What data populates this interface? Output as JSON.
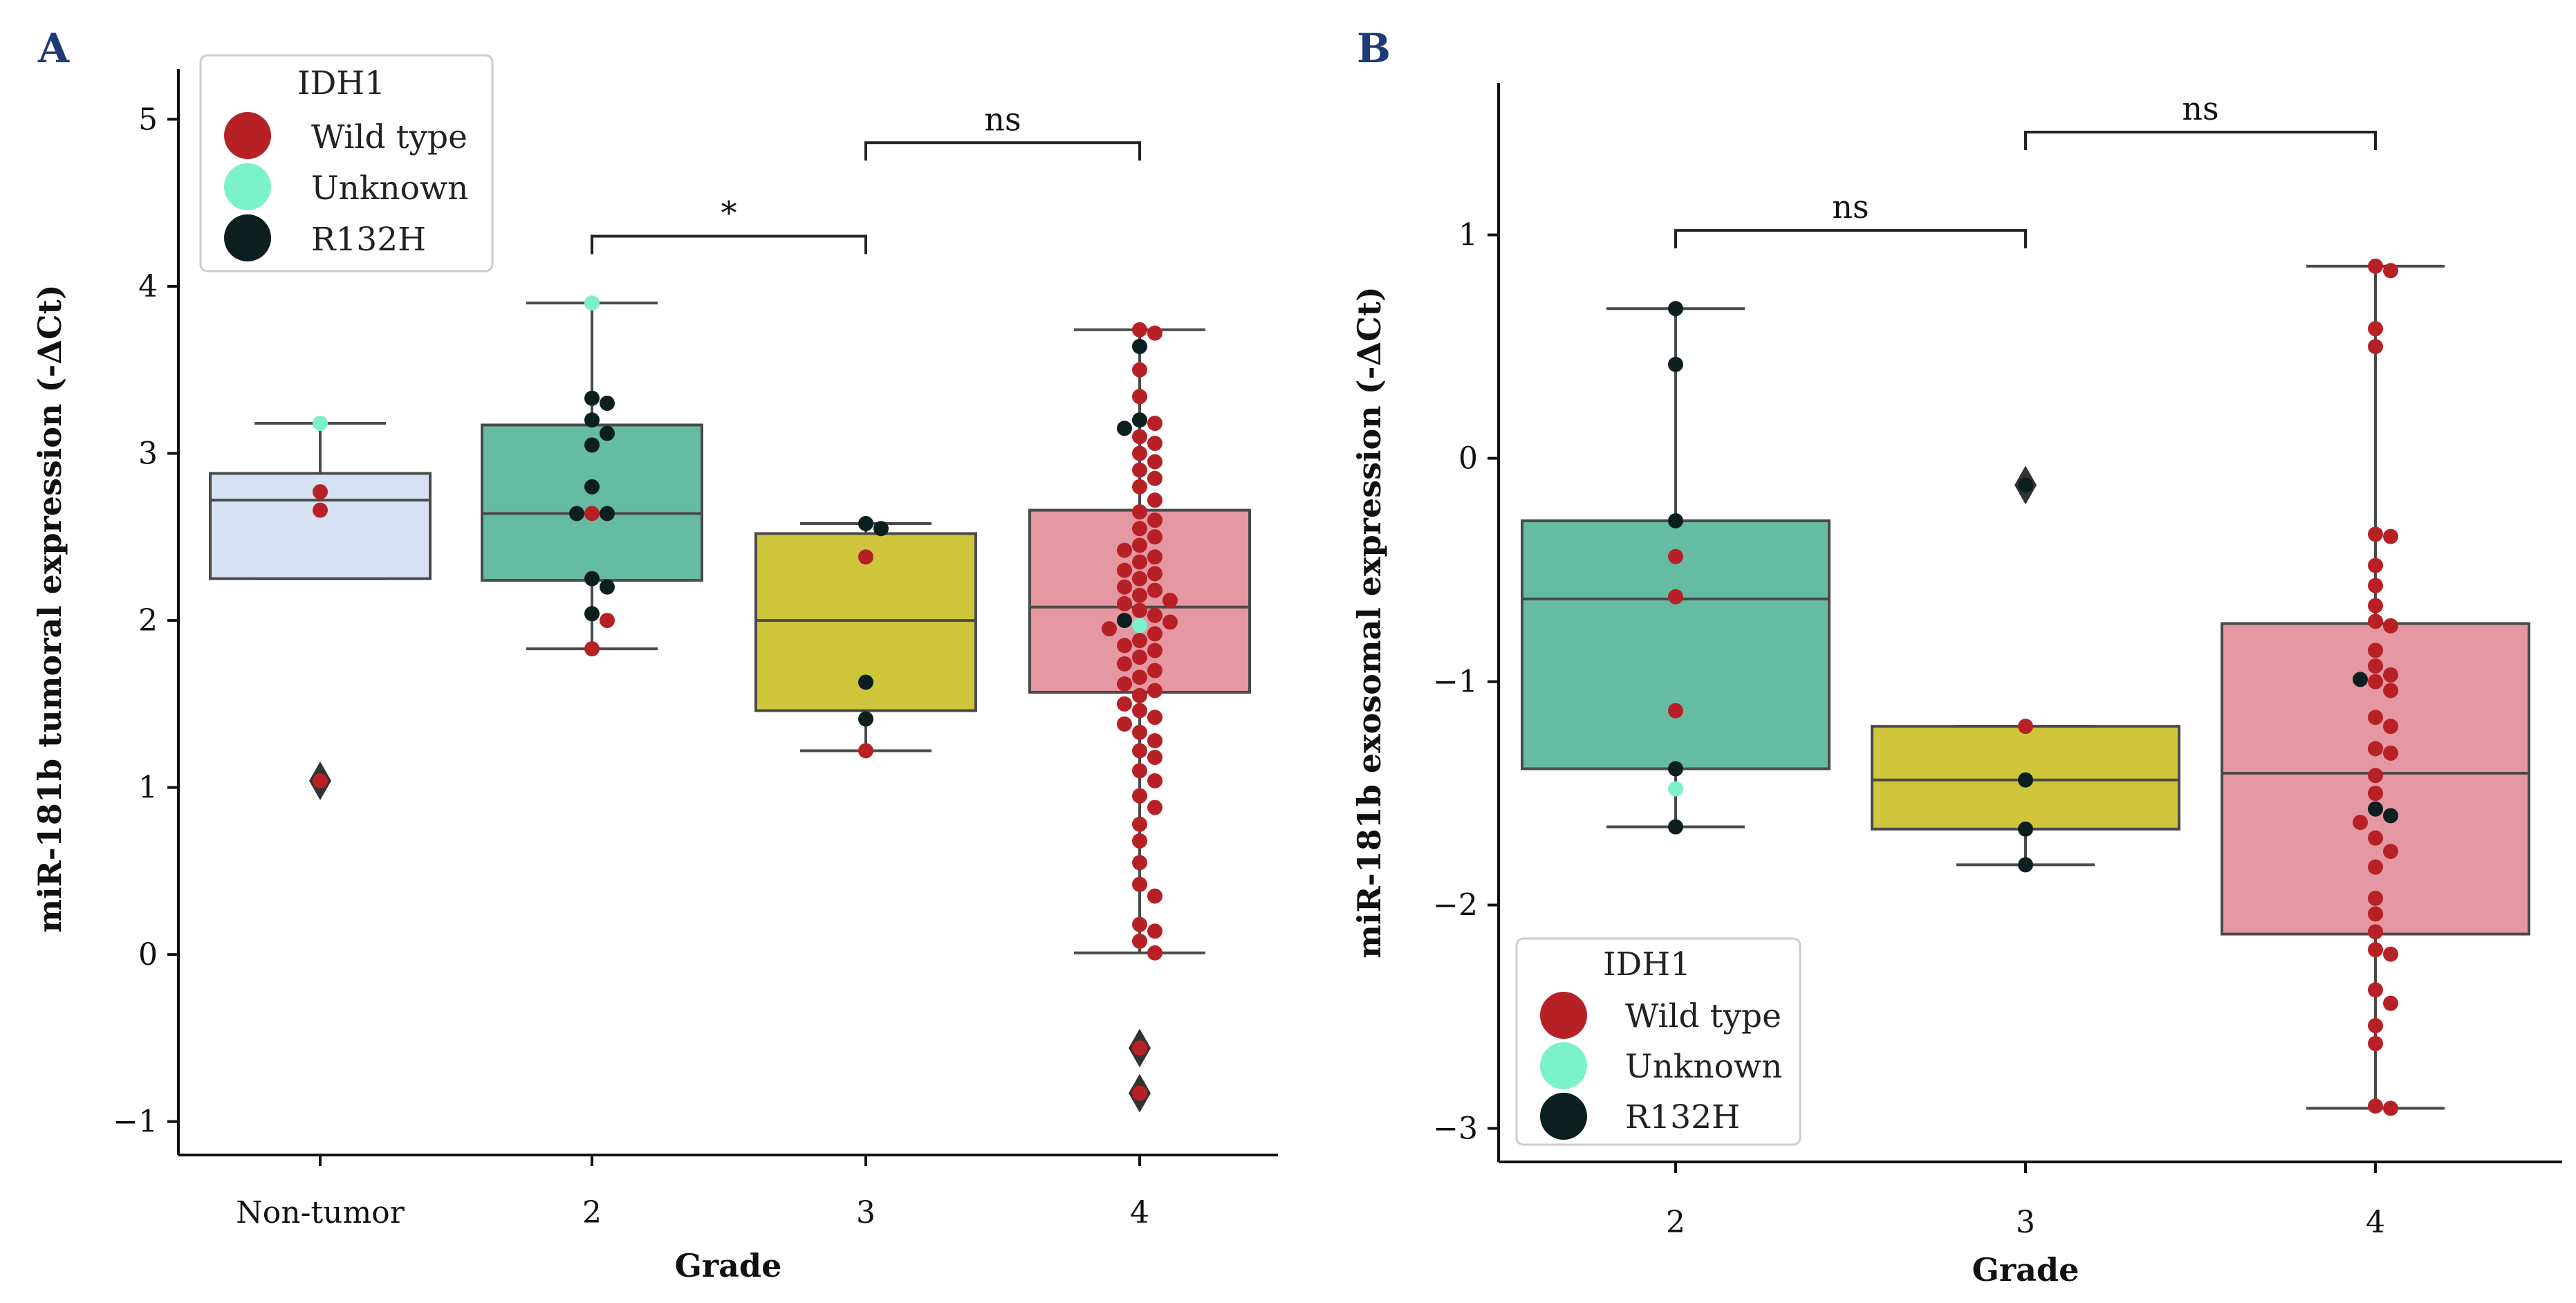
{
  "legend": {
    "title": "IDH1",
    "entries": [
      {
        "label": "Wild type",
        "color": "#b72126"
      },
      {
        "label": "Unknown",
        "color": "#7bf2c9"
      },
      {
        "label": "R132H",
        "color": "#0c1f1f"
      }
    ]
  },
  "chart_data": [
    {
      "panel": "A",
      "type": "box",
      "title": "",
      "xlabel": "Grade",
      "ylabel": "miR-181b tumoral expression (-ΔCt)",
      "ylim": [
        -1.2,
        5.3
      ],
      "yticks": [
        -1,
        0,
        1,
        2,
        3,
        4,
        5
      ],
      "ytick_labels": [
        "−1",
        "0",
        "1",
        "2",
        "3",
        "4",
        "5"
      ],
      "categories": [
        "Non-tumor",
        "2",
        "3",
        "4"
      ],
      "legend_position": "top-left",
      "boxes": [
        {
          "category": "Non-tumor",
          "q1": 2.25,
          "median": 2.72,
          "q3": 2.88,
          "whisker_low": 2.25,
          "whisker_high": 3.18,
          "outliers": [
            1.04
          ],
          "color": "#d6e2f4"
        },
        {
          "category": "2",
          "q1": 2.24,
          "median": 2.64,
          "q3": 3.17,
          "whisker_low": 1.83,
          "whisker_high": 3.9,
          "outliers": [],
          "color": "#66bba3"
        },
        {
          "category": "3",
          "q1": 1.46,
          "median": 2.0,
          "q3": 2.52,
          "whisker_low": 1.22,
          "whisker_high": 2.58,
          "outliers": [],
          "color": "#d0c63b"
        },
        {
          "category": "4",
          "q1": 1.57,
          "median": 2.08,
          "q3": 2.66,
          "whisker_low": 0.01,
          "whisker_high": 3.74,
          "outliers": [
            -0.56,
            -0.83
          ],
          "color": "#e597a2"
        }
      ],
      "points": [
        {
          "category": "Non-tumor",
          "values": [
            3.18
          ],
          "group": "Unknown"
        },
        {
          "category": "Non-tumor",
          "values": [
            2.77,
            2.66,
            1.04
          ],
          "group": "Wild type"
        },
        {
          "category": "2",
          "values": [
            3.9
          ],
          "group": "Unknown"
        },
        {
          "category": "2",
          "values": [
            2.64,
            2.0,
            1.83
          ],
          "group": "Wild type"
        },
        {
          "category": "2",
          "values": [
            3.33,
            3.3,
            3.2,
            3.12,
            3.05,
            2.8,
            2.64,
            2.64,
            2.25,
            2.2,
            2.04
          ],
          "group": "R132H"
        },
        {
          "category": "3",
          "values": [
            2.38,
            1.22
          ],
          "group": "Wild type"
        },
        {
          "category": "3",
          "values": [
            2.58,
            2.55,
            1.63,
            1.41
          ],
          "group": "R132H"
        },
        {
          "category": "4",
          "values": [
            1.97
          ],
          "group": "Unknown"
        },
        {
          "category": "4",
          "values": [
            3.64,
            3.2,
            3.15,
            2.0
          ],
          "group": "R132H"
        },
        {
          "category": "4",
          "values": [
            3.74,
            3.72,
            3.5,
            3.34,
            3.18,
            3.1,
            3.06,
            3.0,
            2.95,
            2.9,
            2.85,
            2.8,
            2.72,
            2.65,
            2.6,
            2.55,
            2.5,
            2.45,
            2.42,
            2.38,
            2.35,
            2.3,
            2.28,
            2.25,
            2.2,
            2.18,
            2.15,
            2.12,
            2.1,
            2.06,
            2.03,
            1.99,
            1.95,
            1.92,
            1.88,
            1.85,
            1.82,
            1.78,
            1.74,
            1.7,
            1.66,
            1.62,
            1.58,
            1.55,
            1.5,
            1.46,
            1.42,
            1.38,
            1.33,
            1.28,
            1.22,
            1.18,
            1.1,
            1.04,
            0.95,
            0.88,
            0.78,
            0.68,
            0.55,
            0.42,
            0.35,
            0.18,
            0.14,
            0.08,
            0.01,
            -0.56,
            -0.83
          ],
          "group": "Wild type"
        }
      ],
      "significance": [
        {
          "from": "2",
          "to": "3",
          "y": 4.3,
          "label": "*"
        },
        {
          "from": "3",
          "to": "4",
          "y": 4.86,
          "label": "ns"
        }
      ]
    },
    {
      "panel": "B",
      "type": "box",
      "title": "",
      "xlabel": "Grade",
      "ylabel": "miR-181b exosomal expression (-ΔCt)",
      "ylim": [
        -3.15,
        1.68
      ],
      "yticks": [
        -3,
        -2,
        -1,
        0,
        1
      ],
      "ytick_labels": [
        "−3",
        "−2",
        "−1",
        "0",
        "1"
      ],
      "categories": [
        "2",
        "3",
        "4"
      ],
      "legend_position": "lower-left",
      "boxes": [
        {
          "category": "2",
          "q1": -1.39,
          "median": -0.63,
          "q3": -0.28,
          "whisker_low": -1.65,
          "whisker_high": 0.67,
          "outliers": [],
          "color": "#66bba3"
        },
        {
          "category": "3",
          "q1": -1.66,
          "median": -1.44,
          "q3": -1.2,
          "whisker_low": -1.82,
          "whisker_high": -1.2,
          "outliers": [
            -0.12
          ],
          "color": "#d0c63b"
        },
        {
          "category": "4",
          "q1": -2.13,
          "median": -1.41,
          "q3": -0.74,
          "whisker_low": -2.91,
          "whisker_high": 0.86,
          "outliers": [],
          "color": "#e597a2"
        }
      ],
      "points": [
        {
          "category": "2",
          "values": [
            -1.48
          ],
          "group": "Unknown"
        },
        {
          "category": "2",
          "values": [
            -0.44,
            -0.62,
            -1.13
          ],
          "group": "Wild type"
        },
        {
          "category": "2",
          "values": [
            0.67,
            0.42,
            -0.28,
            -1.39,
            -1.65
          ],
          "group": "R132H"
        },
        {
          "category": "3",
          "values": [
            -1.2
          ],
          "group": "Wild type"
        },
        {
          "category": "3",
          "values": [
            -0.12,
            -1.44,
            -1.66,
            -1.82
          ],
          "group": "R132H"
        },
        {
          "category": "4",
          "values": [
            -0.99,
            -1.57,
            -1.6
          ],
          "group": "R132H"
        },
        {
          "category": "4",
          "values": [
            0.86,
            0.84,
            0.58,
            0.5,
            -0.34,
            -0.35,
            -0.48,
            -0.57,
            -0.66,
            -0.73,
            -0.75,
            -0.86,
            -0.93,
            -0.97,
            -1.0,
            -1.04,
            -1.16,
            -1.2,
            -1.3,
            -1.32,
            -1.42,
            -1.5,
            -1.63,
            -1.7,
            -1.76,
            -1.83,
            -1.97,
            -2.04,
            -2.12,
            -2.2,
            -2.22,
            -2.38,
            -2.44,
            -2.54,
            -2.62,
            -2.9,
            -2.91
          ],
          "group": "Wild type"
        }
      ],
      "significance": [
        {
          "from": "2",
          "to": "3",
          "y": 1.02,
          "label": "ns"
        },
        {
          "from": "3",
          "to": "4",
          "y": 1.46,
          "label": "ns"
        }
      ]
    }
  ]
}
